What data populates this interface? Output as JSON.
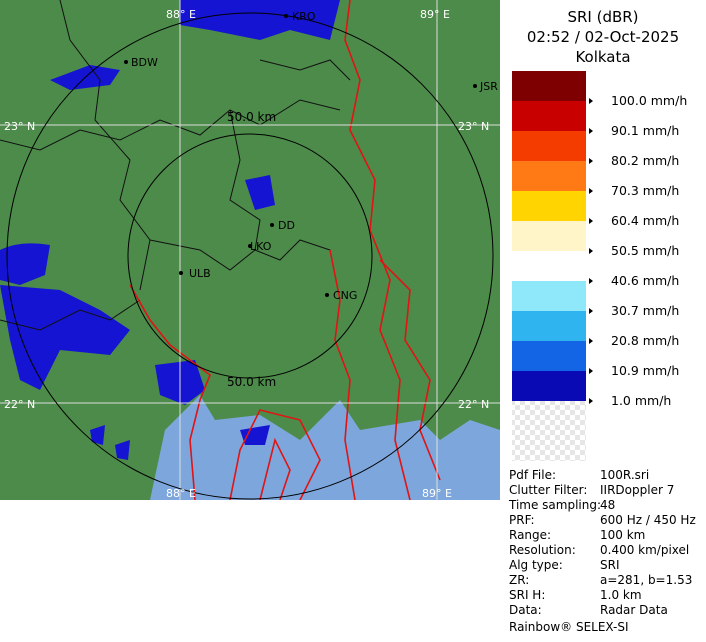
{
  "header": {
    "title": "SRI (dBR)",
    "time": "02:52 / 02-Oct-2025",
    "site": "Kolkata"
  },
  "map": {
    "grid_labels": {
      "lon_west_top": "88° E",
      "lon_east_top": "89° E",
      "lat_north_left": "23° N",
      "lat_north_right": "23° N",
      "lat_south_left": "22° N",
      "lat_south_right": "22° N",
      "lon_west_bottom": "88° E",
      "lon_east_bottom": "89° E"
    },
    "ring_labels": {
      "inner_top": "50.0 km",
      "inner_bottom": "50.0 km"
    },
    "places": {
      "kro": "KRO",
      "bdw": "BDW",
      "jsr": "JSR",
      "dd": "DD",
      "lko": "LKO",
      "ulb": "ULB",
      "cng": "CNG"
    }
  },
  "legend": {
    "entries": [
      {
        "label": "100.0 mm/h",
        "color": "#7f0000"
      },
      {
        "label": "90.1 mm/h",
        "color": "#c80000"
      },
      {
        "label": "80.2 mm/h",
        "color": "#f53c00"
      },
      {
        "label": "70.3 mm/h",
        "color": "#ff7a14"
      },
      {
        "label": "60.4 mm/h",
        "color": "#ffd400"
      },
      {
        "label": "50.5 mm/h",
        "color": "#fff5c8"
      },
      {
        "label": "40.6 mm/h",
        "color": "#ffffff"
      },
      {
        "label": "30.7 mm/h",
        "color": "#8ee8fa"
      },
      {
        "label": "20.8 mm/h",
        "color": "#2fb4f0"
      },
      {
        "label": "10.9 mm/h",
        "color": "#1464e6"
      },
      {
        "label": "1.0 mm/h",
        "color": "#0a0ab4"
      }
    ]
  },
  "info": {
    "rows": [
      [
        "Pdf File:",
        "100R.sri"
      ],
      [
        "Clutter Filter:",
        "IIRDoppler 7"
      ],
      [
        "Time sampling:",
        "48"
      ],
      [
        "PRF:",
        "600 Hz / 450 Hz"
      ],
      [
        "Range:",
        "100 km"
      ],
      [
        "Resolution:",
        "0.400 km/pixel"
      ],
      [
        "Alg type:",
        "SRI"
      ],
      [
        "ZR:",
        "a=281, b=1.53"
      ],
      [
        "SRI H:",
        "1.0 km"
      ],
      [
        "Data:",
        "Radar Data"
      ]
    ],
    "footer": "Rainbow® SELEX-SI"
  }
}
